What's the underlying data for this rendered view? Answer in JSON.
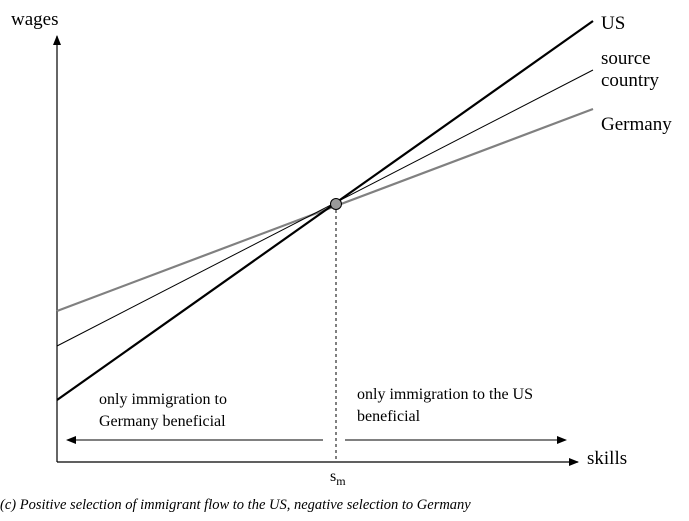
{
  "axes": {
    "y_label": "wages",
    "x_label": "skills",
    "x_mark_label": "s",
    "x_mark_subscript": "m"
  },
  "lines": [
    {
      "key": "us",
      "label": "US",
      "color": "#000000"
    },
    {
      "key": "source",
      "label_line1": "source",
      "label_line2": "country",
      "color": "#000000"
    },
    {
      "key": "germany",
      "label": "Germany",
      "color": "#808080"
    }
  ],
  "regions": {
    "left_line1": "only immigration to",
    "left_line2": "Germany beneficial",
    "right_line1": "only immigration to the US",
    "right_line2": "beneficial"
  },
  "caption": "(c) Positive selection of immigrant flow to the US, negative selection to Germany"
}
